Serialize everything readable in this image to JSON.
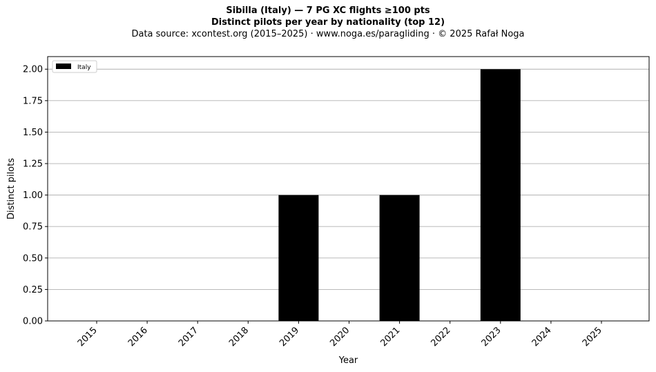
{
  "chart_data": {
    "type": "bar",
    "title": "Sibilla (Italy)  —  7 PG XC flights ≥100 pts",
    "subtitle": "Distinct pilots per year by nationality (top 12)",
    "source": "Data source: xcontest.org (2015–2025)  ·  www.noga.es/paragliding  ·  © 2025 Rafał Noga",
    "xlabel": "Year",
    "ylabel": "Distinct pilots",
    "categories": [
      "2015",
      "2016",
      "2017",
      "2018",
      "2019",
      "2020",
      "2021",
      "2022",
      "2023",
      "2024",
      "2025"
    ],
    "series": [
      {
        "name": "Italy",
        "color": "#000000",
        "values": [
          0,
          0,
          0,
          0,
          1,
          0,
          1,
          0,
          2,
          0,
          0
        ]
      }
    ],
    "ylim": [
      0,
      2.1
    ],
    "yticks": [
      "0.00",
      "0.25",
      "0.50",
      "0.75",
      "1.00",
      "1.25",
      "1.50",
      "1.75",
      "2.00"
    ],
    "grid": "y",
    "legend_position": "top-left"
  }
}
